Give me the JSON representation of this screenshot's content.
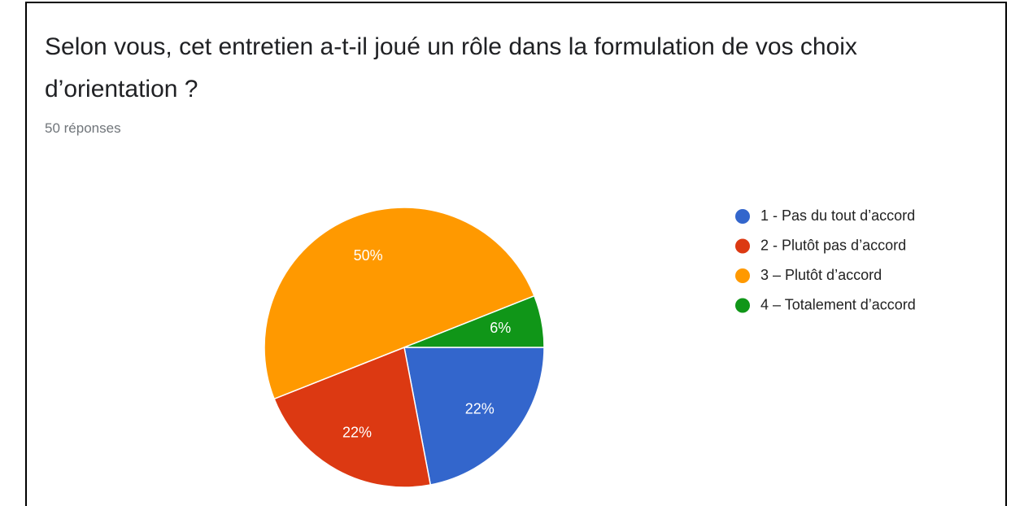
{
  "chart_data": {
    "type": "pie",
    "title": "Selon vous, cet entretien a-t-il joué un rôle dans la formulation de vos choix d’orientation ?",
    "subtitle": "50 réponses",
    "categories": [
      "1 - Pas du tout d’accord",
      "2 - Plutôt pas d’accord",
      "3 – Plutôt d’accord",
      "4 – Totalement d’accord"
    ],
    "values": [
      22,
      22,
      50,
      6
    ],
    "value_labels": [
      "22%",
      "22%",
      "50%",
      "6%"
    ],
    "colors": [
      "#3366cc",
      "#dc3912",
      "#ff9900",
      "#109618"
    ],
    "legend": "right"
  }
}
